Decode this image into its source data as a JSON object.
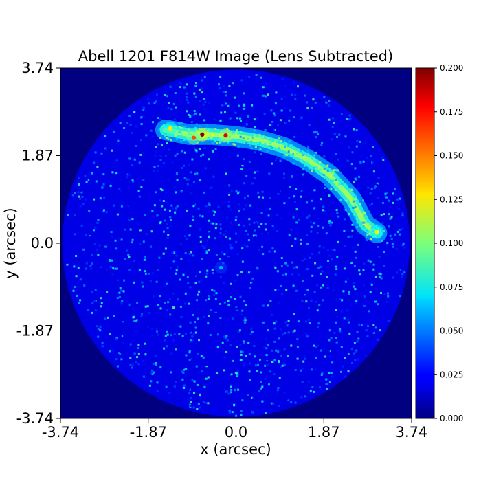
{
  "chart_data": {
    "type": "heatmap",
    "title": "Abell 1201 F814W Image (Lens Subtracted)",
    "xlabel": "x (arcsec)",
    "ylabel": "y (arcsec)",
    "xlim": [
      -3.74,
      3.74
    ],
    "ylim": [
      -3.74,
      3.74
    ],
    "x_ticks": [
      -3.74,
      -1.87,
      0.0,
      1.87,
      3.74
    ],
    "y_ticks": [
      -3.74,
      -1.87,
      0.0,
      1.87,
      3.74
    ],
    "x_tick_labels": [
      "-3.74",
      "-1.87",
      "0.0",
      "1.87",
      "3.74"
    ],
    "y_tick_labels": [
      "-3.74",
      "-1.87",
      "0.0",
      "1.87",
      "3.74"
    ],
    "colormap": "jet",
    "colorbar": {
      "min": 0.0,
      "max": 0.2,
      "ticks": [
        0.0,
        0.025,
        0.05,
        0.075,
        0.1,
        0.125,
        0.15,
        0.175,
        0.2
      ],
      "tick_labels": [
        "0.000",
        "0.025",
        "0.050",
        "0.075",
        "0.100",
        "0.125",
        "0.150",
        "0.175",
        "0.200"
      ]
    },
    "mask": {
      "shape": "circle",
      "center": [
        0.0,
        0.0
      ],
      "radius_arcsec": 3.7
    },
    "features": [
      {
        "kind": "arc",
        "path": [
          [
            -1.5,
            2.42
          ],
          [
            -1.0,
            2.32
          ],
          [
            -0.5,
            2.32
          ],
          [
            0.0,
            2.28
          ],
          [
            0.5,
            2.2
          ],
          [
            1.0,
            2.05
          ],
          [
            1.5,
            1.8
          ],
          [
            2.0,
            1.45
          ],
          [
            2.45,
            0.95
          ],
          [
            2.75,
            0.4
          ],
          [
            3.0,
            0.22
          ]
        ],
        "peak": 0.12
      },
      {
        "kind": "knot",
        "x": -0.72,
        "y": 2.32,
        "value": 0.2
      },
      {
        "kind": "knot",
        "x": -0.22,
        "y": 2.3,
        "value": 0.18
      },
      {
        "kind": "knot",
        "x": -0.9,
        "y": 2.25,
        "value": 0.16
      },
      {
        "kind": "knot",
        "x": -1.4,
        "y": 2.45,
        "value": 0.13
      },
      {
        "kind": "knot",
        "x": 3.0,
        "y": 0.25,
        "value": 0.12
      },
      {
        "kind": "knot",
        "x": -0.32,
        "y": -0.52,
        "value": 0.06
      },
      {
        "kind": "knot",
        "x": -0.1,
        "y": -0.1,
        "value": 0.04
      }
    ]
  }
}
